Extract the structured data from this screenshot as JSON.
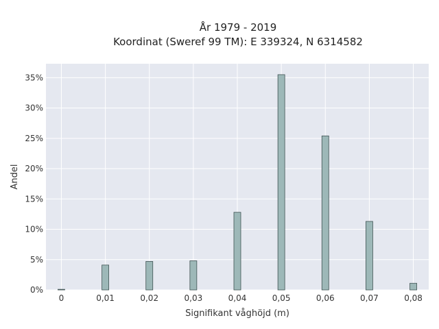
{
  "chart_data": {
    "type": "bar",
    "title_lines": [
      "År 1979 - 2019",
      "Koordinat (Sweref 99 TM): E 339324, N 6314582"
    ],
    "xlabel": "Signifikant våghöjd (m)",
    "ylabel": "Andel",
    "x": [
      0,
      0.01,
      0.02,
      0.03,
      0.04,
      0.05,
      0.06,
      0.07,
      0.08
    ],
    "x_tick_labels": [
      "0",
      "0,01",
      "0,02",
      "0,03",
      "0,04",
      "0,05",
      "0,06",
      "0,07",
      "0,08"
    ],
    "values": [
      0.1,
      4.1,
      4.7,
      4.8,
      12.8,
      35.5,
      25.4,
      11.3,
      1.1
    ],
    "y_ticks": [
      0,
      5,
      10,
      15,
      20,
      25,
      30,
      35
    ],
    "y_tick_labels": [
      "0%",
      "5%",
      "10%",
      "15%",
      "20%",
      "25%",
      "30%",
      "35%"
    ],
    "xlim": [
      -0.0035,
      0.0835
    ],
    "ylim": [
      0,
      37.3
    ],
    "grid": true,
    "colors": {
      "bar_fill": "#9db8b8",
      "bar_stroke": "#3f5252",
      "plot_background": "#e5e8f0",
      "grid": "#ffffff"
    }
  }
}
